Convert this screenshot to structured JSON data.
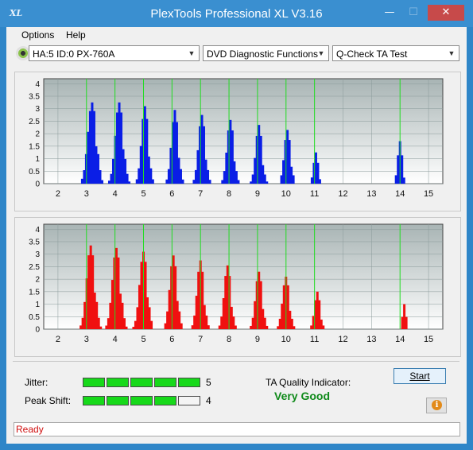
{
  "window": {
    "title": "PlexTools Professional XL V3.16",
    "logo_text": "XL",
    "min_glyph": "—",
    "max_glyph": "☐",
    "close_glyph": "✕"
  },
  "menu": [
    {
      "label": "Options"
    },
    {
      "label": "Help"
    }
  ],
  "toolbar": {
    "drive": "HA:5 ID:0  PX-760A",
    "function": "DVD Diagnostic Functions",
    "test": "Q-Check TA Test",
    "dropdown_glyph": "▼"
  },
  "chart_data": [
    {
      "type": "bar",
      "title": "",
      "series_color": "#0a1ee6",
      "marker_color": "#22dd22",
      "xlim": [
        1.5,
        15.5
      ],
      "ylim": [
        0,
        4.2
      ],
      "xticks": [
        "2",
        "3",
        "4",
        "5",
        "6",
        "7",
        "8",
        "9",
        "10",
        "11",
        "12",
        "13",
        "14",
        "15"
      ],
      "yticks": [
        "0",
        "0.5",
        "1",
        "1.5",
        "2",
        "2.5",
        "3",
        "3.5",
        "4"
      ],
      "markers": [
        3,
        4,
        5,
        6,
        7,
        8,
        9,
        10,
        11,
        14
      ],
      "peaks": [
        {
          "center": 3.2,
          "height": 3.25,
          "width": 0.38
        },
        {
          "center": 4.15,
          "height": 3.25,
          "width": 0.35
        },
        {
          "center": 5.05,
          "height": 3.1,
          "width": 0.3
        },
        {
          "center": 6.1,
          "height": 2.95,
          "width": 0.3
        },
        {
          "center": 7.05,
          "height": 2.75,
          "width": 0.3
        },
        {
          "center": 8.05,
          "height": 2.55,
          "width": 0.3
        },
        {
          "center": 9.05,
          "height": 2.35,
          "width": 0.28
        },
        {
          "center": 10.05,
          "height": 2.15,
          "width": 0.28
        },
        {
          "center": 11.05,
          "height": 1.25,
          "width": 0.2
        },
        {
          "center": 14.0,
          "height": 1.7,
          "width": 0.2
        }
      ]
    },
    {
      "type": "bar",
      "title": "",
      "series_color": "#f01010",
      "marker_color": "#22dd22",
      "xlim": [
        1.5,
        15.5
      ],
      "ylim": [
        0,
        4.2
      ],
      "xticks": [
        "2",
        "3",
        "4",
        "5",
        "6",
        "7",
        "8",
        "9",
        "10",
        "11",
        "12",
        "13",
        "14",
        "15"
      ],
      "yticks": [
        "0",
        "0.5",
        "1",
        "1.5",
        "2",
        "2.5",
        "3",
        "3.5",
        "4"
      ],
      "markers": [
        3,
        4,
        5,
        6,
        7,
        8,
        9,
        10,
        11,
        14
      ],
      "peaks": [
        {
          "center": 3.15,
          "height": 3.35,
          "width": 0.36
        },
        {
          "center": 4.05,
          "height": 3.25,
          "width": 0.36
        },
        {
          "center": 5.0,
          "height": 3.1,
          "width": 0.34
        },
        {
          "center": 6.05,
          "height": 2.95,
          "width": 0.32
        },
        {
          "center": 7.0,
          "height": 2.75,
          "width": 0.3
        },
        {
          "center": 7.95,
          "height": 2.55,
          "width": 0.3
        },
        {
          "center": 9.05,
          "height": 2.3,
          "width": 0.3
        },
        {
          "center": 10.0,
          "height": 2.1,
          "width": 0.3
        },
        {
          "center": 11.1,
          "height": 1.5,
          "width": 0.25
        },
        {
          "center": 14.15,
          "height": 1.0,
          "width": 0.15
        }
      ]
    }
  ],
  "metrics": {
    "jitter_label": "Jitter:",
    "jitter_value": "5",
    "jitter_level": 5,
    "peak_label": "Peak Shift:",
    "peak_value": "4",
    "peak_level": 4,
    "max_level": 5,
    "ta_label": "TA Quality Indicator:",
    "ta_value": "Very Good"
  },
  "buttons": {
    "start": "Start",
    "info_glyph": "i"
  },
  "status": "Ready"
}
